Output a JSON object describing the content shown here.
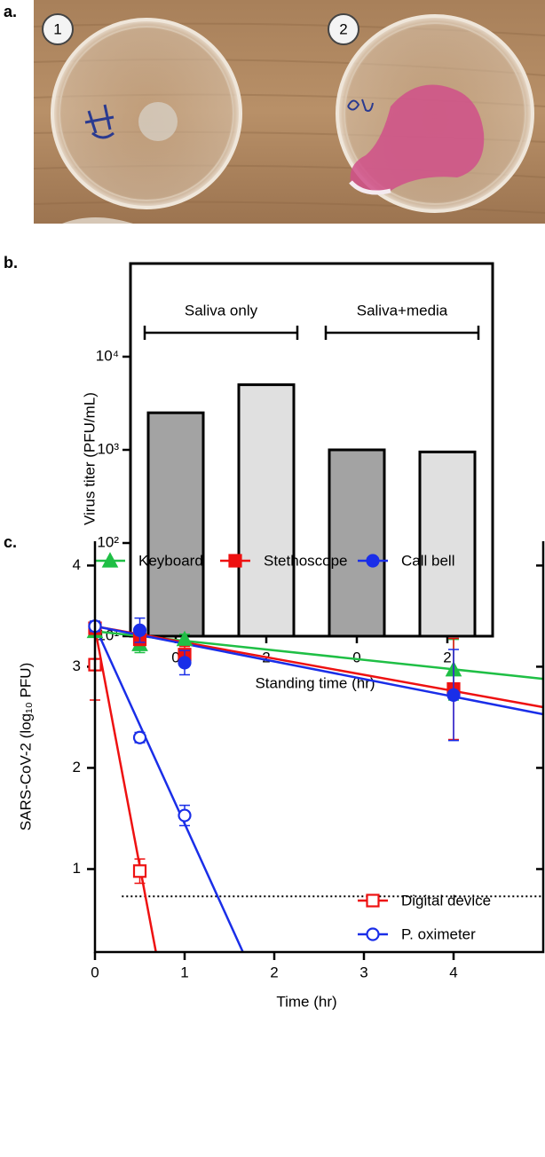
{
  "panel_labels": [
    "a.",
    "b.",
    "c."
  ],
  "photo": {
    "dish_labels": [
      "1",
      "2"
    ]
  },
  "chart_data": [
    {
      "type": "bar",
      "categories": [
        "0",
        "2",
        "0",
        "2"
      ],
      "values": [
        2500,
        5000,
        1000,
        950
      ],
      "colors": [
        "#a3a3a3",
        "#e0e0e0",
        "#a3a3a3",
        "#e0e0e0"
      ],
      "groups": [
        "Saliva only",
        "Saliva+media"
      ],
      "xlabel": "Standing time (hr)",
      "ylabel": "Virus titer (PFU/mL)",
      "log_y": true,
      "ylim": [
        10,
        100000
      ],
      "yticks": [
        {
          "value": 10,
          "label": "10¹"
        },
        {
          "value": 100,
          "label": "10²"
        },
        {
          "value": 1000,
          "label": "10³"
        },
        {
          "value": 10000,
          "label": "10⁴"
        }
      ]
    },
    {
      "type": "line",
      "xlabel": "Time (hr)",
      "ylabel": "SARS-CoV-2 (log₁₀ PFU)",
      "xlim": [
        0,
        5
      ],
      "ylim": [
        0.18,
        4.24
      ],
      "xticks": [
        0,
        1,
        2,
        3,
        4
      ],
      "yticks": [
        1,
        2,
        3,
        4
      ],
      "hline": {
        "value": 0.73,
        "x": [
          0.3,
          5
        ]
      },
      "series": [
        {
          "name": "Keyboard",
          "color": "#1fbf45",
          "marker": "triangle",
          "filled": true,
          "legend": "top",
          "x": [
            0,
            0.5,
            1,
            4
          ],
          "values": [
            3.35,
            3.22,
            3.27,
            2.97
          ],
          "errors": [
            0.05,
            0.08,
            0.05,
            0.3
          ],
          "fit": {
            "x": [
              0,
              5
            ],
            "values": [
              3.35,
              2.88
            ]
          }
        },
        {
          "name": "Stethoscope",
          "color": "#ee1111",
          "marker": "square",
          "filled": true,
          "legend": "top",
          "x": [
            0,
            0.5,
            1,
            4
          ],
          "values": [
            3.38,
            3.27,
            3.12,
            2.78
          ],
          "errors": [
            0.05,
            0.05,
            0.08,
            0.5
          ],
          "fit": {
            "x": [
              0,
              5
            ],
            "values": [
              3.4,
              2.6
            ]
          }
        },
        {
          "name": "Call bell",
          "color": "#1a2ee8",
          "marker": "circle",
          "filled": true,
          "legend": "top",
          "x": [
            0,
            0.5,
            1,
            4
          ],
          "values": [
            3.4,
            3.36,
            3.04,
            2.72
          ],
          "errors": [
            0.05,
            0.12,
            0.12,
            0.45
          ],
          "fit": {
            "x": [
              0,
              5
            ],
            "values": [
              3.4,
              2.53
            ]
          }
        },
        {
          "name": "Digital device",
          "color": "#ee1111",
          "marker": "square",
          "filled": false,
          "legend": "bottom-right",
          "x": [
            0,
            0.5
          ],
          "values": [
            3.02,
            0.98
          ],
          "errors": [
            0.35,
            0.12
          ],
          "fit": {
            "x": [
              0,
              0.68
            ],
            "values": [
              3.38,
              0.18
            ]
          }
        },
        {
          "name": "P. oximeter",
          "color": "#1a2ee8",
          "marker": "circle",
          "filled": false,
          "legend": "bottom-right",
          "x": [
            0,
            0.5,
            1
          ],
          "values": [
            3.4,
            2.3,
            1.53
          ],
          "errors": [
            0.05,
            0.05,
            0.1
          ],
          "fit": {
            "x": [
              0,
              1.65
            ],
            "values": [
              3.4,
              0.18
            ]
          }
        }
      ]
    }
  ]
}
